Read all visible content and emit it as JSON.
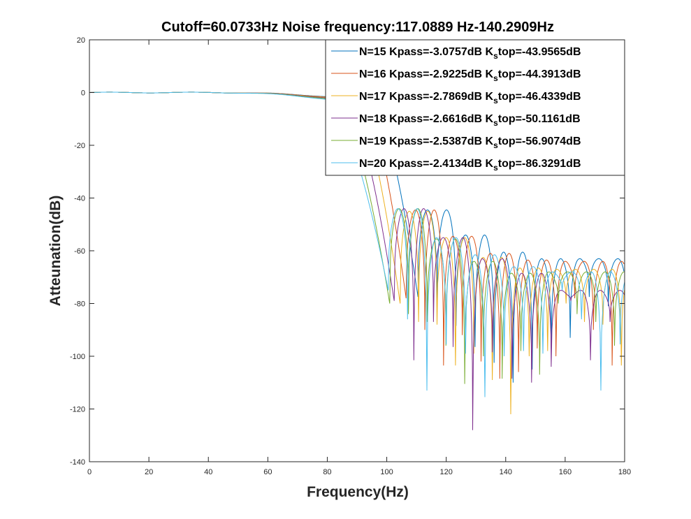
{
  "chart_data": {
    "type": "line",
    "title": "Cutoff=60.0733Hz   Noise frequency:117.0889 Hz-140.2909Hz",
    "xlabel": "Frequency(Hz)",
    "ylabel": "Atteunation(dB)",
    "xlim": [
      0,
      180
    ],
    "ylim": [
      -140,
      20
    ],
    "xticks": [
      0,
      20,
      40,
      60,
      80,
      100,
      120,
      140,
      160,
      180
    ],
    "yticks": [
      20,
      0,
      -20,
      -40,
      -60,
      -80,
      -100,
      -120,
      -140
    ],
    "grid": false,
    "legend_position": "top-right",
    "series": [
      {
        "label_parts": [
          "N=15  Kpass=-3.0757dB K",
          "s",
          "top=-43.9565dB"
        ],
        "color": "#0072BD",
        "passband_end": 95,
        "first_null": 110.5,
        "spacing": 6.4,
        "null_depths": [
          77.5,
          81,
          88.5,
          96.5,
          102.5,
          110,
          105,
          97.5,
          93
        ],
        "peak_levels": [
          44.5,
          54,
          60.5,
          63,
          63
        ]
      },
      {
        "label_parts": [
          "N=16  Kpass=-2.9225dB K",
          "s",
          "top=-44.3913dB"
        ],
        "color": "#D95319",
        "passband_end": 92,
        "first_null": 106.5,
        "spacing": 6.3,
        "null_depths": [
          78,
          90,
          103.5,
          92,
          102,
          108.5,
          106,
          97,
          100
        ],
        "peak_levels": [
          44.5,
          54.5,
          61,
          63.5,
          64
        ]
      },
      {
        "label_parts": [
          "N=17  Kpass=-2.7869dB K",
          "s",
          "top=-46.4339dB"
        ],
        "color": "#EDB120",
        "passband_end": 89,
        "first_null": 104.5,
        "spacing": 6.2,
        "null_depths": [
          80,
          87,
          88,
          103.5,
          99,
          109,
          122,
          100,
          98
        ],
        "peak_levels": [
          45,
          55,
          62.5,
          66.5,
          67
        ]
      },
      {
        "label_parts": [
          "N=18  Kpass=-2.6616dB K",
          "s",
          "top=-50.1161dB"
        ],
        "color": "#7E2F8E",
        "passband_end": 86,
        "first_null": 102.5,
        "spacing": 6.6,
        "null_depths": [
          79,
          101.5,
          87,
          96.5,
          128,
          98.5,
          108.5,
          110,
          104
        ],
        "peak_levels": [
          44,
          55,
          63,
          68.5,
          75
        ]
      },
      {
        "label_parts": [
          "N=19  Kpass=-2.5387dB K",
          "s",
          "top=-56.9074dB"
        ],
        "color": "#77AC30",
        "passband_end": 83,
        "first_null": 101,
        "spacing": 6.3,
        "null_depths": [
          80,
          84,
          87,
          96,
          110.5,
          100,
          108.5,
          98,
          107
        ],
        "peak_levels": [
          44,
          55.5,
          64,
          68.5,
          68
        ]
      },
      {
        "label_parts": [
          "N=20  Kpass=-2.4134dB K",
          "s",
          "top=-86.3291dB"
        ],
        "color": "#4DBEEE",
        "passband_end": 80,
        "first_null": 100.5,
        "spacing": 6.5,
        "null_depths": [
          75,
          86,
          113,
          95.5,
          99,
          115.5,
          100,
          98,
          99
        ],
        "peak_levels": [
          44,
          55,
          61.5,
          66,
          68
        ]
      }
    ]
  }
}
